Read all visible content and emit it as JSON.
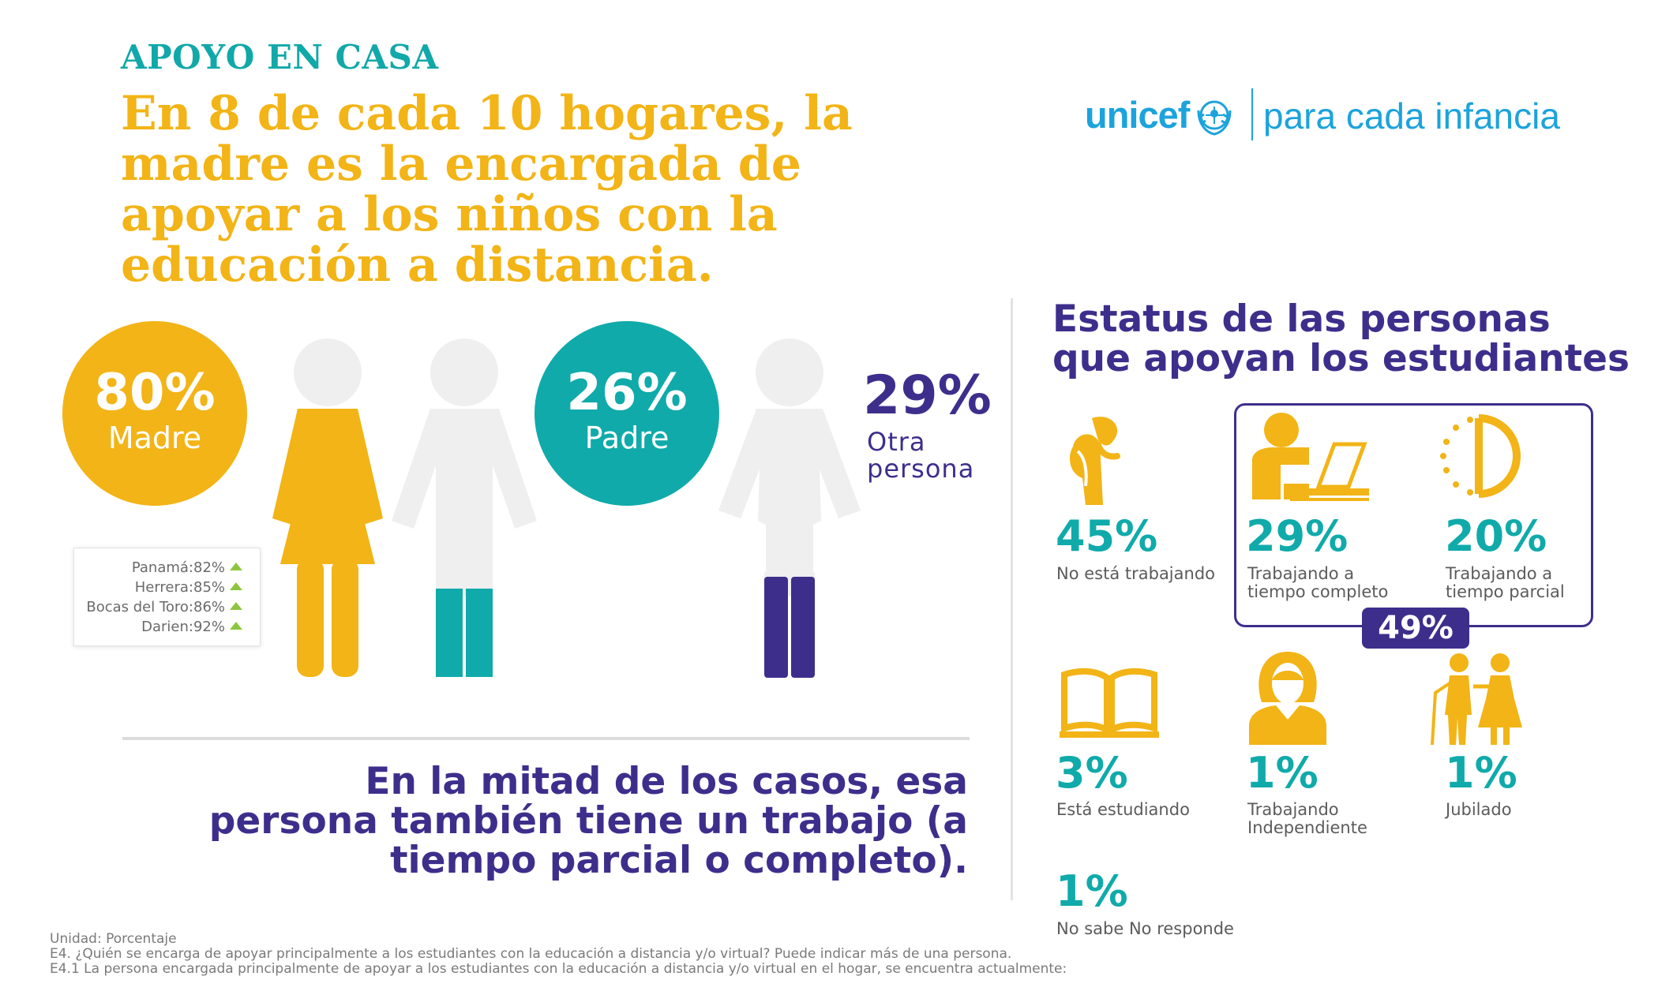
{
  "header": {
    "kicker": "APOYO EN CASA",
    "headline": "En 8 de cada 10 hogares, la madre es la encargada de apoyar a los niños con la educación a distancia."
  },
  "logo": {
    "brand": "unicef",
    "tagline": "para cada infancia"
  },
  "figures": {
    "madre": {
      "pct": "80%",
      "label": "Madre"
    },
    "padre": {
      "pct": "26%",
      "label": "Padre"
    },
    "otra": {
      "pct": "29%",
      "label": "Otra persona"
    },
    "regions": [
      {
        "label": "Panamá:82%"
      },
      {
        "label": "Herrera:85%"
      },
      {
        "label": "Bocas del Toro:86%"
      },
      {
        "label": "Darien:92%"
      }
    ]
  },
  "summary": "En la mitad de los casos, esa persona también tiene un trabajo (a tiempo parcial o completo).",
  "status": {
    "title": "Estatus de las personas que apoyan los estudiantes",
    "working_total": "49%",
    "items": [
      {
        "pct": "45%",
        "label": "No está trabajando"
      },
      {
        "pct": "29%",
        "label": "Trabajando a tiempo completo"
      },
      {
        "pct": "20%",
        "label": "Trabajando a tiempo parcial"
      },
      {
        "pct": "3%",
        "label": "Está estudiando"
      },
      {
        "pct": "1%",
        "label": "Trabajando Independiente"
      },
      {
        "pct": "1%",
        "label": "Jubilado"
      },
      {
        "pct": "1%",
        "label": "No sabe No responde"
      }
    ]
  },
  "footnote": {
    "unit": "Unidad: Porcentaje",
    "q1": "E4. ¿Quién se encarga de apoyar principalmente a los estudiantes con la educación a distancia y/o virtual? Puede indicar más de una persona.",
    "q2": "E4.1 La persona encargada principalmente de apoyar a los estudiantes con la educación a distancia y/o virtual en el hogar, se encuentra actualmente:"
  },
  "colors": {
    "yellow": "#f2b416",
    "teal": "#10aaaa",
    "purple": "#3e2e8c",
    "light_gray": "#efefef",
    "unicef_blue": "#1ca3dc"
  },
  "icons": [
    "woman-figure-icon",
    "man-figure-icon",
    "person-figure-icon",
    "tired-person-icon",
    "desk-laptop-icon",
    "half-clock-icon",
    "open-book-icon",
    "independent-worker-icon",
    "elderly-couple-icon",
    "unicef-emblem-icon",
    "up-triangle-icon"
  ]
}
